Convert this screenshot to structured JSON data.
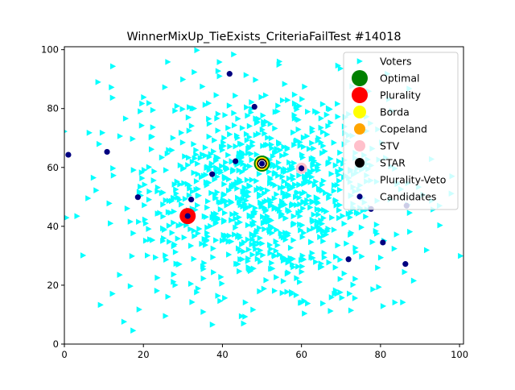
{
  "chart_data": {
    "type": "scatter",
    "title": "WinnerMixUp_TieExists_CriteriaFailTest #14018",
    "xlabel": "",
    "ylabel": "",
    "xlim": [
      0,
      101
    ],
    "ylim": [
      0,
      101
    ],
    "x_ticks": [
      0,
      20,
      40,
      60,
      80,
      100
    ],
    "y_ticks": [
      0,
      20,
      40,
      60,
      80,
      100
    ],
    "grid": false,
    "legend_position": "top-right",
    "voter_count": 1000,
    "voter_distribution": {
      "center": [
        50,
        50
      ],
      "spread": 18
    },
    "series": [
      {
        "name": "Voters",
        "marker": "triangle-right",
        "color": "#00ffff"
      },
      {
        "name": "Optimal",
        "marker": "circle",
        "color": "#008000",
        "points": [
          [
            50.0,
            61.3
          ]
        ]
      },
      {
        "name": "Plurality",
        "marker": "circle",
        "color": "#ff0000",
        "points": [
          [
            31.2,
            43.5
          ]
        ]
      },
      {
        "name": "Borda",
        "marker": "circle",
        "color": "#ffff00",
        "points": [
          [
            50.0,
            61.3
          ]
        ]
      },
      {
        "name": "Copeland",
        "marker": "circle",
        "color": "#ffa500",
        "points": [
          [
            50.0,
            61.3
          ]
        ]
      },
      {
        "name": "STV",
        "marker": "circle",
        "color": "#ffc0cb",
        "points": [
          [
            60.0,
            59.7
          ]
        ]
      },
      {
        "name": "STAR",
        "marker": "circle",
        "color": "#000000",
        "points": [
          [
            50.0,
            61.3
          ]
        ]
      },
      {
        "name": "Plurality-Veto",
        "marker": "circle",
        "color": "#ffffff",
        "points": [
          [
            50.0,
            61.3
          ]
        ]
      },
      {
        "name": "Candidates",
        "marker": "circle",
        "color": "#000080",
        "points": [
          [
            1.0,
            64.3
          ],
          [
            10.8,
            65.3
          ],
          [
            18.6,
            49.9
          ],
          [
            32.1,
            49.1
          ],
          [
            31.2,
            43.5
          ],
          [
            37.4,
            57.7
          ],
          [
            41.8,
            91.8
          ],
          [
            43.3,
            62.1
          ],
          [
            48.1,
            80.6
          ],
          [
            50.0,
            61.3
          ],
          [
            60.0,
            59.7
          ],
          [
            71.9,
            28.8
          ],
          [
            77.6,
            45.9
          ],
          [
            80.6,
            34.5
          ],
          [
            86.3,
            27.2
          ],
          [
            86.6,
            47.0
          ]
        ]
      }
    ]
  }
}
